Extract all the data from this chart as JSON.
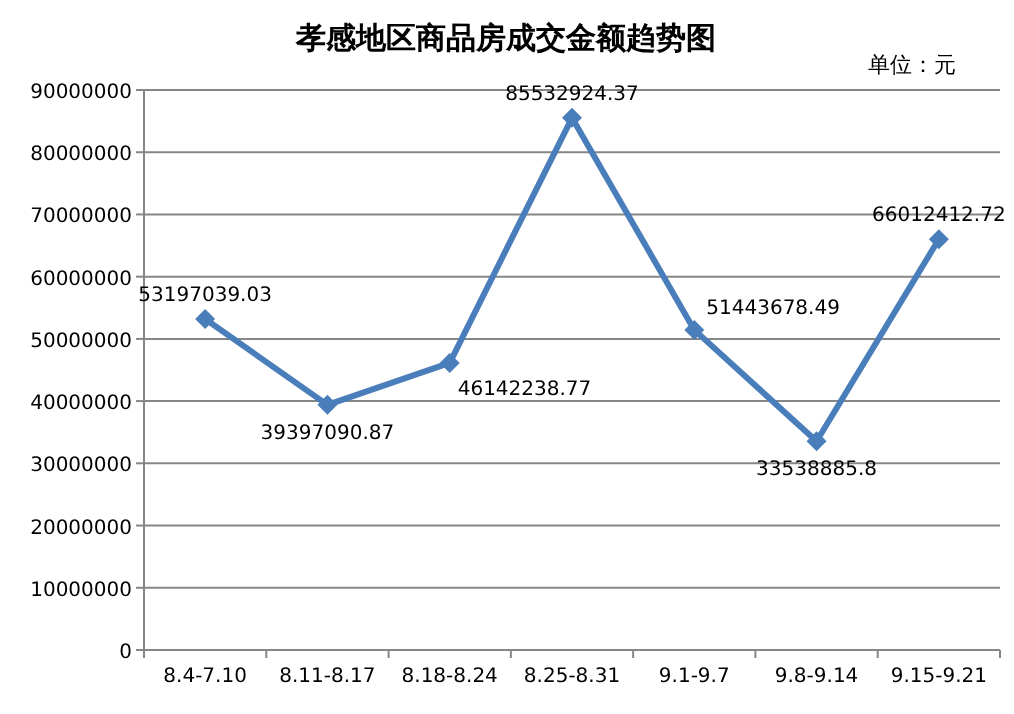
{
  "chart_data": {
    "type": "line",
    "title": "孝感地区商品房成交金额趋势图",
    "annotations": [
      "单位：元"
    ],
    "categories": [
      "8.4-7.10",
      "8.11-8.17",
      "8.18-8.24",
      "8.25-8.31",
      "9.1-9.7",
      "9.8-9.14",
      "9.15-9.21"
    ],
    "series": [
      {
        "color": "#4a7ebb",
        "values": [
          53197039.03,
          39397090.87,
          46142238.77,
          85532924.37,
          51443678.49,
          33538885.8,
          66012412.72
        ]
      }
    ],
    "ylim": [
      0,
      90000000
    ],
    "yticks": [
      0,
      10000000,
      20000000,
      30000000,
      40000000,
      50000000,
      60000000,
      70000000,
      80000000,
      90000000
    ],
    "grid": "y",
    "marker": "diamond",
    "data_labels": true
  }
}
